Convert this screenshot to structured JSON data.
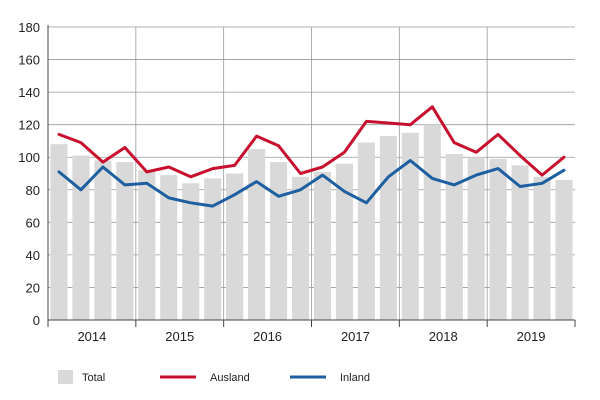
{
  "chart_data": {
    "type": "bar",
    "title": "",
    "xlabel": "",
    "ylabel": "",
    "ylim": [
      0,
      180
    ],
    "yticks": [
      0,
      20,
      40,
      60,
      80,
      100,
      120,
      140,
      160,
      180
    ],
    "grid": true,
    "legend_position": "bottom",
    "year_labels": [
      "2014",
      "2015",
      "2016",
      "2017",
      "2018",
      "2019"
    ],
    "quarters_per_year": 4,
    "series": [
      {
        "name": "Total",
        "kind": "bar",
        "color": "#d9d9d9",
        "values": [
          108,
          101,
          98,
          97,
          92,
          89,
          84,
          87,
          90,
          105,
          97,
          88,
          91,
          96,
          109,
          113,
          115,
          120,
          102,
          100,
          99,
          95,
          88,
          86
        ]
      },
      {
        "name": "Ausland",
        "kind": "line",
        "color": "#c8102e",
        "values": [
          114,
          109,
          97,
          106,
          91,
          94,
          88,
          93,
          95,
          113,
          107,
          90,
          94,
          103,
          122,
          121,
          120,
          131,
          109,
          103,
          114,
          101,
          89,
          100
        ]
      },
      {
        "name": "Inland",
        "kind": "line",
        "color": "#1d5fa0",
        "values": [
          91,
          80,
          94,
          83,
          84,
          75,
          72,
          70,
          77,
          85,
          76,
          80,
          89,
          79,
          72,
          88,
          98,
          87,
          83,
          89,
          93,
          82,
          84,
          92
        ]
      }
    ]
  }
}
